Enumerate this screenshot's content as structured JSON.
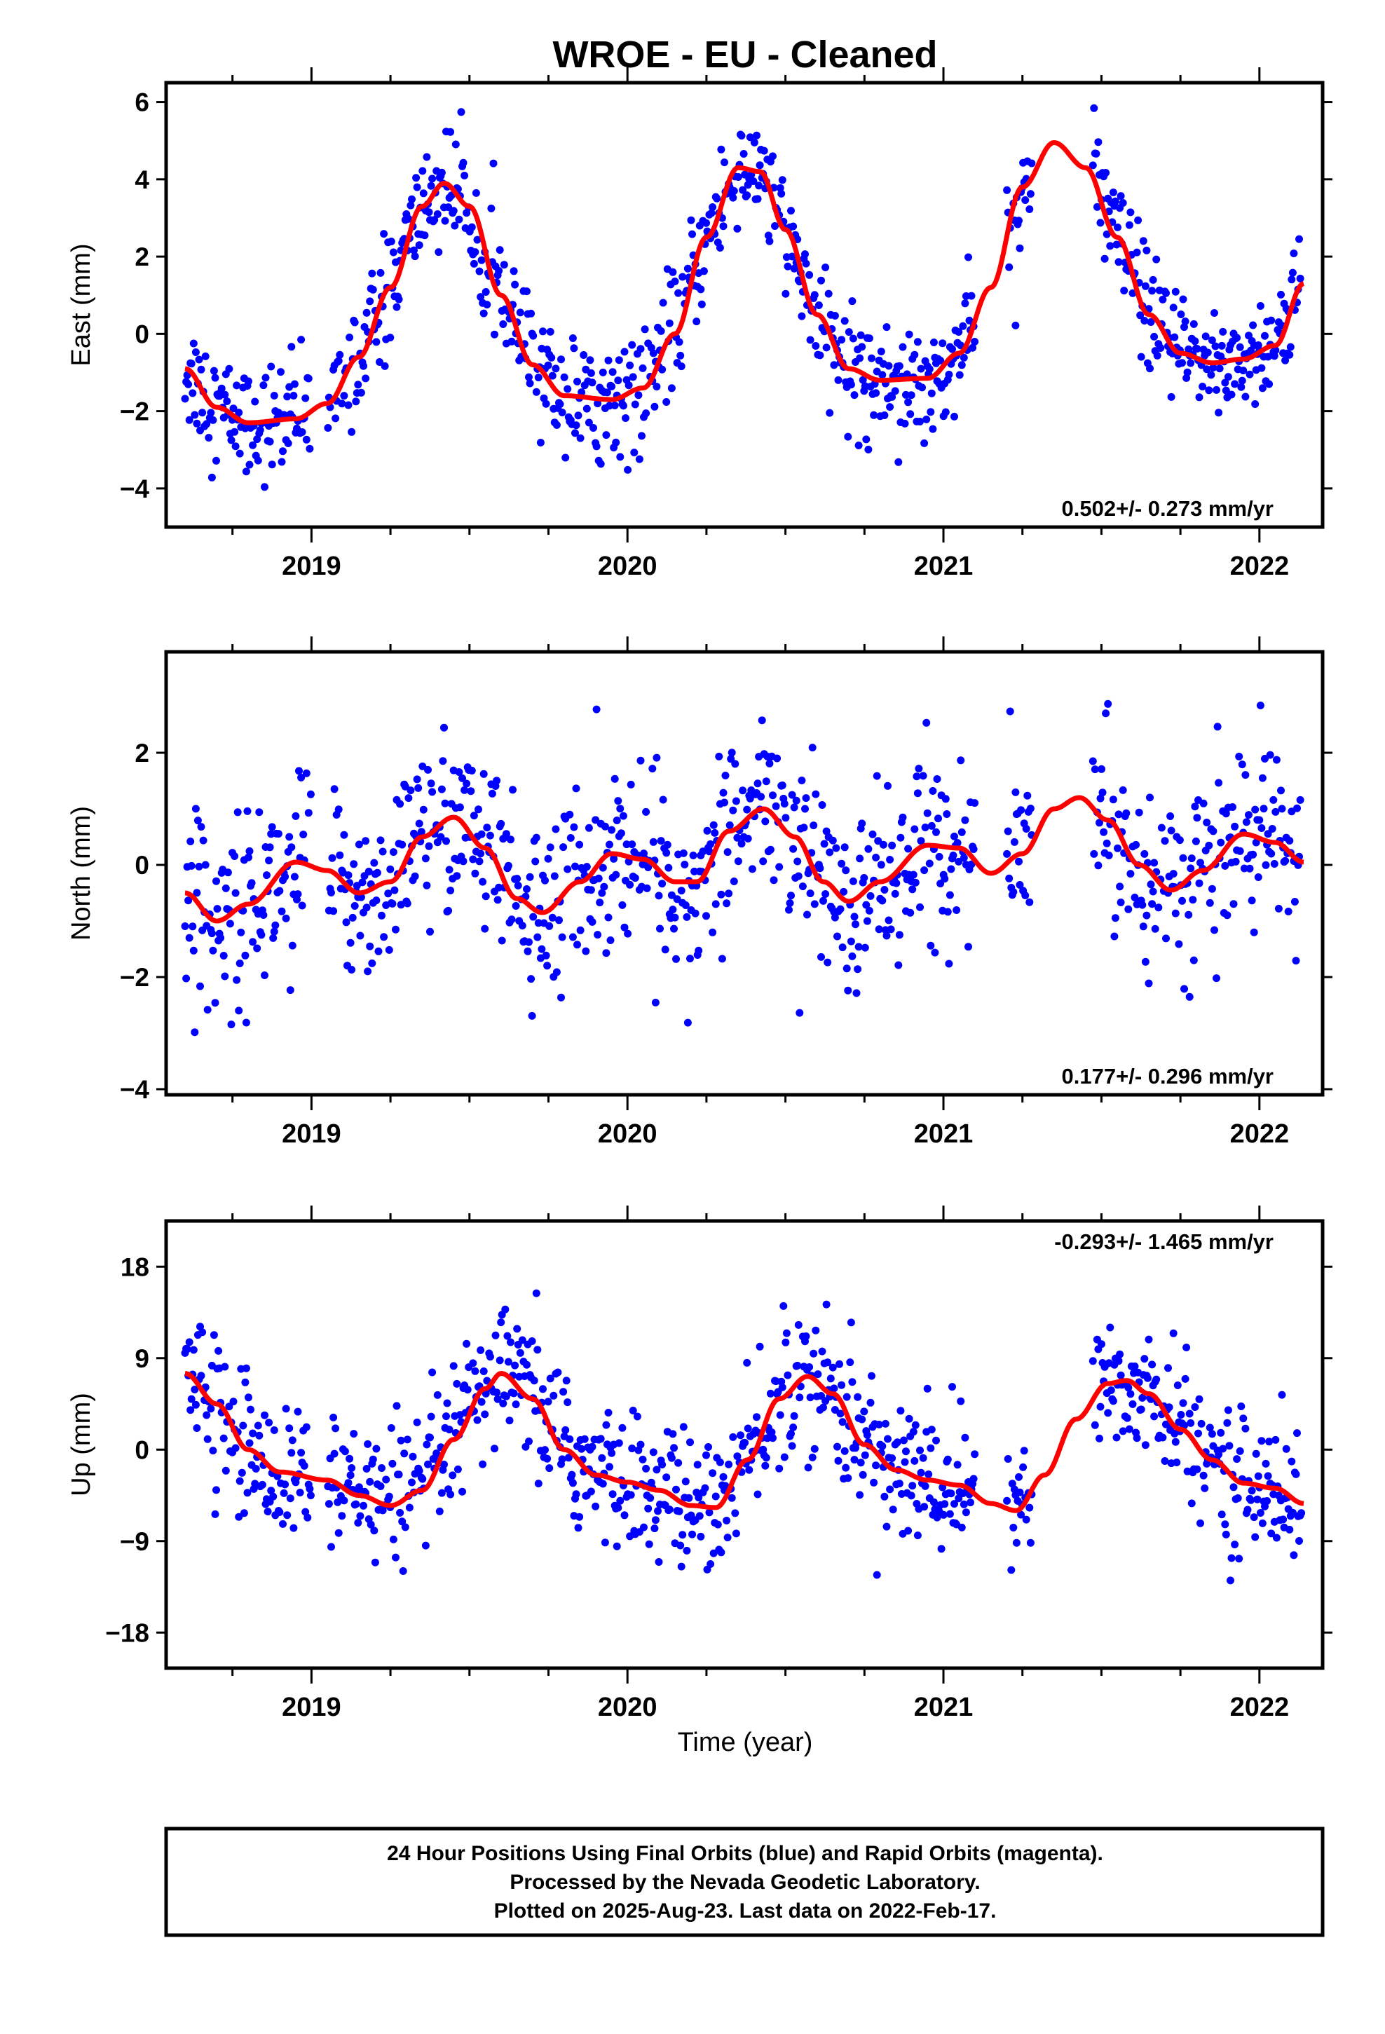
{
  "title": "WROE  - EU - Cleaned",
  "xlabel": "Time (year)",
  "footer": {
    "line1": "24 Hour Positions Using Final Orbits (blue) and Rapid Orbits (magenta).",
    "line2": "Processed by the Nevada Geodetic Laboratory.",
    "line3": "Plotted on 2025-Aug-23. Last data on 2022-Feb-17."
  },
  "colors": {
    "points": "#0000ff",
    "fit": "#ff0000",
    "frame": "#000000"
  },
  "chart_data": [
    {
      "type": "scatter",
      "panel": "east",
      "ylabel": "East (mm)",
      "rate_label": "0.502+/- 0.273 mm/yr",
      "xlim": [
        2018.54,
        2022.2
      ],
      "ylim": [
        -5,
        6.5
      ],
      "yticks": [
        -4,
        -2,
        0,
        2,
        4,
        6
      ],
      "xticks": [
        2019,
        2020,
        2021,
        2022
      ],
      "scatter_std": 0.75,
      "fit": [
        [
          2018.6,
          -0.9
        ],
        [
          2018.7,
          -1.9
        ],
        [
          2018.8,
          -2.3
        ],
        [
          2018.95,
          -2.2
        ],
        [
          2019.05,
          -1.8
        ],
        [
          2019.15,
          -0.6
        ],
        [
          2019.25,
          1.2
        ],
        [
          2019.35,
          3.3
        ],
        [
          2019.42,
          3.9
        ],
        [
          2019.5,
          3.3
        ],
        [
          2019.6,
          1.0
        ],
        [
          2019.7,
          -0.8
        ],
        [
          2019.8,
          -1.6
        ],
        [
          2019.95,
          -1.7
        ],
        [
          2020.05,
          -1.4
        ],
        [
          2020.15,
          0.0
        ],
        [
          2020.25,
          2.5
        ],
        [
          2020.35,
          4.3
        ],
        [
          2020.42,
          4.2
        ],
        [
          2020.5,
          2.7
        ],
        [
          2020.6,
          0.5
        ],
        [
          2020.7,
          -0.9
        ],
        [
          2020.8,
          -1.2
        ],
        [
          2020.95,
          -1.15
        ],
        [
          2021.05,
          -0.5
        ],
        [
          2021.15,
          1.2
        ],
        [
          2021.25,
          3.8
        ],
        [
          2021.35,
          4.95
        ],
        [
          2021.45,
          4.3
        ],
        [
          2021.55,
          2.5
        ],
        [
          2021.65,
          0.5
        ],
        [
          2021.75,
          -0.5
        ],
        [
          2021.85,
          -0.75
        ],
        [
          2021.95,
          -0.65
        ],
        [
          2022.05,
          -0.3
        ],
        [
          2022.14,
          1.3
        ]
      ]
    },
    {
      "type": "scatter",
      "panel": "north",
      "ylabel": "North (mm)",
      "rate_label": "0.177+/- 0.296 mm/yr",
      "xlim": [
        2018.54,
        2022.2
      ],
      "ylim": [
        -4.1,
        3.8
      ],
      "yticks": [
        -4,
        -2,
        0,
        2
      ],
      "xticks": [
        2019,
        2020,
        2021,
        2022
      ],
      "scatter_std": 0.8,
      "fit": [
        [
          2018.6,
          -0.5
        ],
        [
          2018.7,
          -1.0
        ],
        [
          2018.8,
          -0.7
        ],
        [
          2018.95,
          0.05
        ],
        [
          2019.05,
          -0.1
        ],
        [
          2019.15,
          -0.5
        ],
        [
          2019.25,
          -0.3
        ],
        [
          2019.35,
          0.5
        ],
        [
          2019.45,
          0.85
        ],
        [
          2019.55,
          0.3
        ],
        [
          2019.65,
          -0.6
        ],
        [
          2019.73,
          -0.85
        ],
        [
          2019.85,
          -0.3
        ],
        [
          2019.95,
          0.2
        ],
        [
          2020.05,
          0.1
        ],
        [
          2020.15,
          -0.3
        ],
        [
          2020.22,
          -0.3
        ],
        [
          2020.32,
          0.6
        ],
        [
          2020.43,
          1.0
        ],
        [
          2020.53,
          0.5
        ],
        [
          2020.62,
          -0.3
        ],
        [
          2020.7,
          -0.65
        ],
        [
          2020.8,
          -0.3
        ],
        [
          2020.95,
          0.35
        ],
        [
          2021.05,
          0.3
        ],
        [
          2021.15,
          -0.15
        ],
        [
          2021.25,
          0.2
        ],
        [
          2021.35,
          1.0
        ],
        [
          2021.43,
          1.2
        ],
        [
          2021.52,
          0.8
        ],
        [
          2021.62,
          0.0
        ],
        [
          2021.72,
          -0.45
        ],
        [
          2021.82,
          -0.1
        ],
        [
          2021.95,
          0.55
        ],
        [
          2022.05,
          0.4
        ],
        [
          2022.14,
          0.05
        ]
      ]
    },
    {
      "type": "scatter",
      "panel": "up",
      "ylabel": "Up (mm)",
      "rate_label": "-0.293+/- 1.465 mm/yr",
      "xlim": [
        2018.54,
        2022.2
      ],
      "ylim": [
        -21.5,
        22.5
      ],
      "yticks": [
        -18,
        -9,
        0,
        9,
        18
      ],
      "xticks": [
        2019,
        2020,
        2021,
        2022
      ],
      "scatter_std": 3.5,
      "fit": [
        [
          2018.6,
          7.5
        ],
        [
          2018.7,
          4.5
        ],
        [
          2018.8,
          0.0
        ],
        [
          2018.9,
          -2.2
        ],
        [
          2019.05,
          -3.0
        ],
        [
          2019.15,
          -4.5
        ],
        [
          2019.25,
          -5.5
        ],
        [
          2019.35,
          -4.0
        ],
        [
          2019.45,
          1.0
        ],
        [
          2019.55,
          6.0
        ],
        [
          2019.6,
          7.5
        ],
        [
          2019.7,
          5.0
        ],
        [
          2019.8,
          0.0
        ],
        [
          2019.9,
          -2.5
        ],
        [
          2020.0,
          -3.2
        ],
        [
          2020.1,
          -4.0
        ],
        [
          2020.2,
          -5.5
        ],
        [
          2020.28,
          -5.7
        ],
        [
          2020.38,
          -1.0
        ],
        [
          2020.48,
          5.0
        ],
        [
          2020.57,
          7.2
        ],
        [
          2020.65,
          5.5
        ],
        [
          2020.75,
          0.5
        ],
        [
          2020.85,
          -2.0
        ],
        [
          2020.95,
          -3.0
        ],
        [
          2021.05,
          -3.5
        ],
        [
          2021.15,
          -5.3
        ],
        [
          2021.23,
          -6.0
        ],
        [
          2021.32,
          -2.5
        ],
        [
          2021.42,
          3.0
        ],
        [
          2021.52,
          6.5
        ],
        [
          2021.58,
          6.8
        ],
        [
          2021.65,
          5.5
        ],
        [
          2021.75,
          2.0
        ],
        [
          2021.85,
          -1.0
        ],
        [
          2021.95,
          -3.3
        ],
        [
          2022.05,
          -3.8
        ],
        [
          2022.14,
          -5.3
        ]
      ]
    }
  ]
}
